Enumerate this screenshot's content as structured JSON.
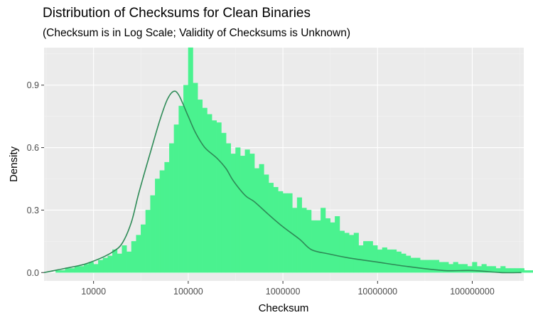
{
  "chart_data": {
    "type": "histogram",
    "title": "Distribution of Checksums for Clean Binaries",
    "subtitle": "(Checksum is in Log Scale; Validity of Checksums is Unknown)",
    "xlabel": "Checksum",
    "ylabel": "Density",
    "x_scale": "log10",
    "x_ticks": [
      10000,
      100000,
      1000000,
      10000000,
      100000000
    ],
    "x_tick_labels": [
      "10000",
      "100000",
      "1000000",
      "10000000",
      "100000000"
    ],
    "xlim": [
      3000,
      350000000
    ],
    "y_ticks": [
      0.0,
      0.3,
      0.6,
      0.9
    ],
    "y_tick_labels": [
      "0.0",
      "0.3",
      "0.6",
      "0.9"
    ],
    "ylim": [
      -0.04,
      1.08
    ],
    "grid": true,
    "bin_width_log10": 0.05,
    "bins_start_log10": 3.6,
    "histogram_density": [
      0.01,
      0.01,
      0.02,
      0.02,
      0.03,
      0.03,
      0.04,
      0.05,
      0.04,
      0.06,
      0.07,
      0.08,
      0.11,
      0.09,
      0.13,
      0.1,
      0.15,
      0.18,
      0.23,
      0.3,
      0.37,
      0.45,
      0.49,
      0.53,
      0.62,
      0.71,
      0.8,
      0.9,
      1.08,
      0.91,
      0.83,
      0.79,
      0.76,
      0.73,
      0.72,
      0.67,
      0.62,
      0.57,
      0.6,
      0.56,
      0.59,
      0.57,
      0.5,
      0.52,
      0.47,
      0.43,
      0.41,
      0.39,
      0.38,
      0.38,
      0.31,
      0.36,
      0.31,
      0.3,
      0.25,
      0.25,
      0.31,
      0.26,
      0.24,
      0.27,
      0.2,
      0.19,
      0.18,
      0.19,
      0.13,
      0.15,
      0.15,
      0.13,
      0.11,
      0.12,
      0.11,
      0.11,
      0.1,
      0.09,
      0.08,
      0.07,
      0.07,
      0.06,
      0.06,
      0.06,
      0.06,
      0.05,
      0.05,
      0.04,
      0.05,
      0.04,
      0.04,
      0.03,
      0.05,
      0.03,
      0.04,
      0.03,
      0.03,
      0.02,
      0.03,
      0.02,
      0.02,
      0.02,
      0.02,
      0.01,
      0.01,
      0.01,
      0.01,
      0.01,
      0.01,
      0.01,
      0.01,
      0.01,
      0.01,
      0.01,
      0.01,
      0.01
    ],
    "density_curve": {
      "x": [
        3000,
        5000,
        8000,
        12000,
        16000,
        20000,
        25000,
        30000,
        40000,
        50000,
        60000,
        70000,
        80000,
        100000,
        120000,
        150000,
        200000,
        250000,
        300000,
        400000,
        500000,
        700000,
        1000000,
        1500000,
        2000000,
        3000000,
        5000000,
        10000000,
        20000000,
        50000000,
        100000000,
        200000000,
        330000000
      ],
      "y": [
        0.0,
        0.02,
        0.04,
        0.07,
        0.1,
        0.14,
        0.24,
        0.38,
        0.58,
        0.73,
        0.83,
        0.87,
        0.85,
        0.75,
        0.67,
        0.6,
        0.55,
        0.5,
        0.44,
        0.37,
        0.34,
        0.28,
        0.22,
        0.16,
        0.11,
        0.09,
        0.07,
        0.05,
        0.03,
        0.01,
        0.01,
        0.0,
        0.0
      ]
    },
    "colors": {
      "panel_bg": "#ebebeb",
      "grid_major": "#ffffff",
      "grid_minor": "#f4f4f4",
      "bar_fill": "#4af28f",
      "bar_stroke": "#4af28f",
      "curve": "#2e8b57"
    }
  }
}
